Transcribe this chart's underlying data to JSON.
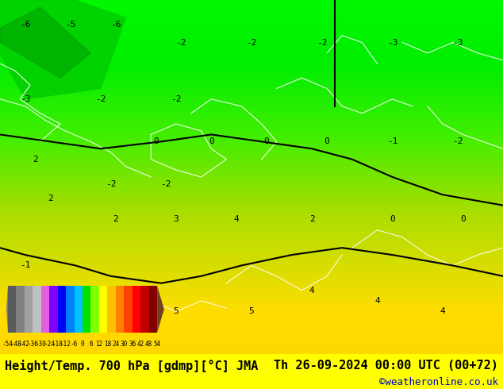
{
  "title_left": "Height/Temp. 700 hPa [gdmp][°C] JMA",
  "title_right": "Th 26-09-2024 00:00 UTC (00+72)",
  "credit": "©weatheronline.co.uk",
  "colorbar_values": [
    -54,
    -48,
    -42,
    -36,
    -30,
    -24,
    -18,
    -12,
    -6,
    0,
    6,
    12,
    18,
    24,
    30,
    36,
    42,
    48,
    54
  ],
  "colorbar_colors": [
    "#5a5a5a",
    "#808080",
    "#a0a0a0",
    "#c0c0c0",
    "#e060e0",
    "#8000ff",
    "#0000ff",
    "#0080ff",
    "#00c0ff",
    "#00e000",
    "#80ff00",
    "#ffff00",
    "#ffc000",
    "#ff8000",
    "#ff4000",
    "#ff0000",
    "#c00000",
    "#800000"
  ],
  "bg_color": "#ffff00",
  "map_colors": {
    "green_bright": "#00ff00",
    "green_dark": "#00cc00",
    "yellow": "#ffff00",
    "gold": "#ffd700",
    "orange": "#ffa500"
  },
  "title_fontsize": 11,
  "credit_fontsize": 9,
  "tick_fontsize": 7
}
